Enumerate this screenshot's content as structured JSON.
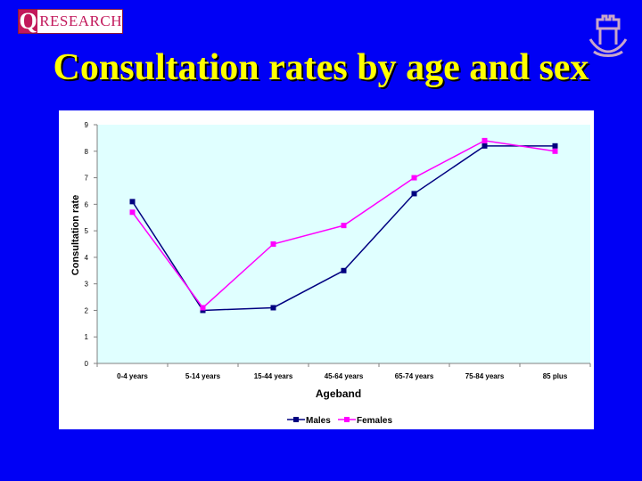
{
  "logo": {
    "q": "Q",
    "text": "RESEARCH"
  },
  "slide_title": "Consultation rates by age and sex",
  "colors": {
    "background": "#0000f5",
    "title": "#ffff00",
    "plot_bg": "#e0ffff",
    "males": "#000080",
    "females": "#ff00ff"
  },
  "chart_data": {
    "type": "line",
    "categories": [
      "0-4 years",
      "5-14 years",
      "15-44 years",
      "45-64 years",
      "65-74 years",
      "75-84 years",
      "85 plus"
    ],
    "series": [
      {
        "name": "Males",
        "values": [
          6.1,
          2.0,
          2.1,
          3.5,
          6.4,
          8.2,
          8.2
        ]
      },
      {
        "name": "Females",
        "values": [
          5.7,
          2.1,
          4.5,
          5.2,
          7.0,
          8.4,
          8.0
        ]
      }
    ],
    "xlabel": "Ageband",
    "ylabel": "Consultation rate",
    "ylim": [
      0,
      9
    ],
    "yticks": [
      "0",
      "1",
      "2",
      "3",
      "4",
      "5",
      "6",
      "7",
      "8",
      "9"
    ],
    "legend": "bottom-center"
  }
}
